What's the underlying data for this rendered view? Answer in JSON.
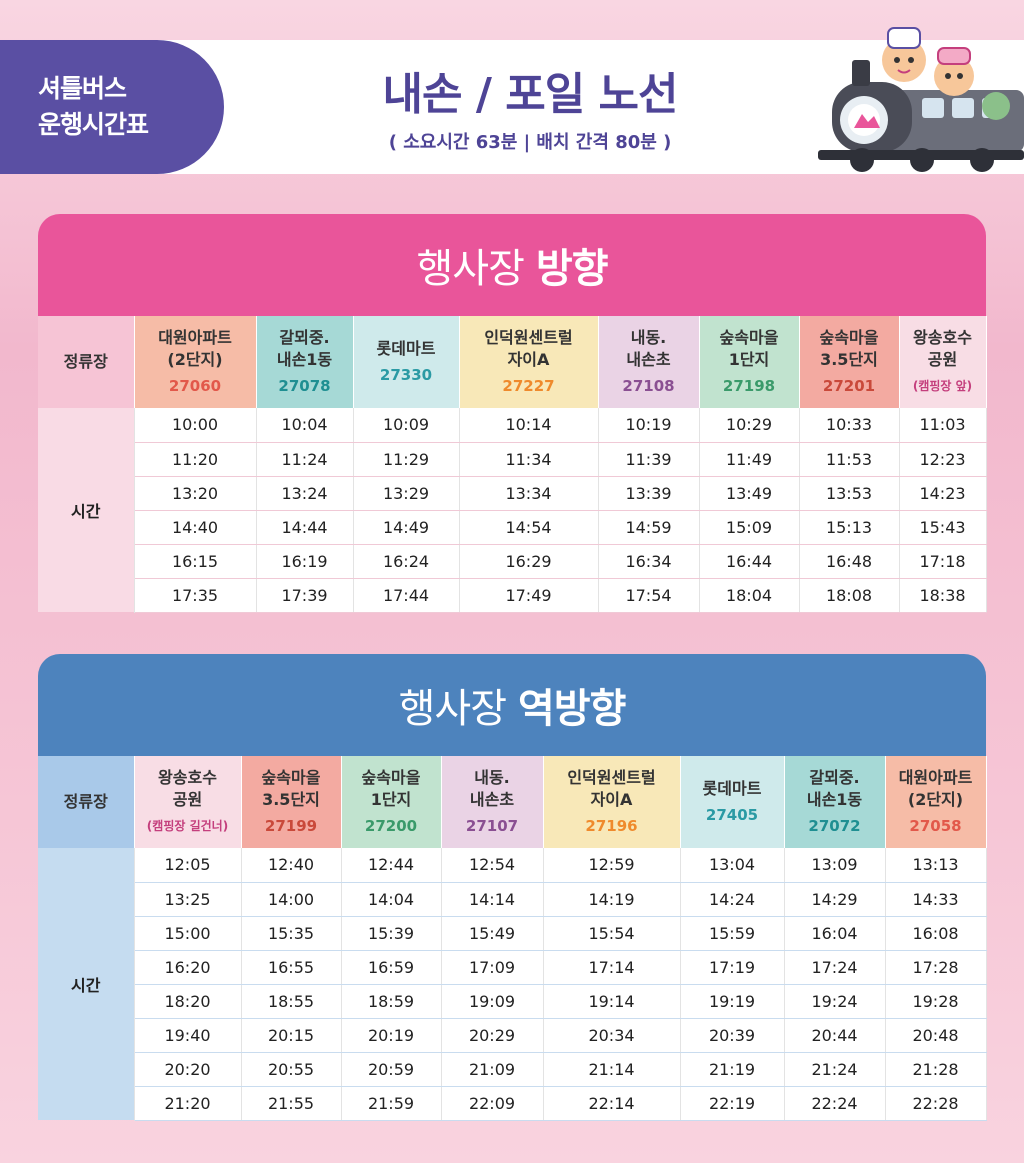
{
  "header": {
    "badge_line1": "셔틀버스",
    "badge_line2": "운행시간표",
    "title": "내손 / 포일 노선",
    "subtitle": "( 소요시간 63분 | 배치 간격 80분 )"
  },
  "colors": {
    "accent_purple": "#4e4496",
    "section1_header": "#e9559a",
    "section2_header": "#4d83bd"
  },
  "sections": [
    {
      "title_light": "행사장",
      "title_bold": "방향",
      "stop_label": "정류장",
      "time_label": "시간",
      "stops": [
        {
          "name1": "대원아파트",
          "name2": "(2단지)",
          "code": "27060",
          "bg": "#f6bca7",
          "code_color": "#e2584a"
        },
        {
          "name1": "갈뫼중.",
          "name2": "내손1동",
          "code": "27078",
          "bg": "#a6d9d6",
          "code_color": "#1f8f92"
        },
        {
          "name1": "롯데마트",
          "name2": "",
          "code": "27330",
          "bg": "#cfeaeb",
          "code_color": "#2a9aa4"
        },
        {
          "name1": "인덕원센트럴",
          "name2": "자이A",
          "code": "27227",
          "bg": "#f8e8b8",
          "code_color": "#ef8a2c"
        },
        {
          "name1": "내동.",
          "name2": "내손초",
          "code": "27108",
          "bg": "#ead3e5",
          "code_color": "#8a4f92"
        },
        {
          "name1": "숲속마을",
          "name2": "1단지",
          "code": "27198",
          "bg": "#c1e3cf",
          "code_color": "#3a9a6a"
        },
        {
          "name1": "숲속마을",
          "name2": "3.5단지",
          "code": "27201",
          "bg": "#f3aaa1",
          "code_color": "#c9493a"
        },
        {
          "name1": "왕송호수",
          "name2": "공원",
          "code": "(캠핑장 앞)",
          "bg": "#f8dde5",
          "code_color": "#c43f7d"
        }
      ],
      "times": [
        [
          "10:00",
          "10:04",
          "10:09",
          "10:14",
          "10:19",
          "10:29",
          "10:33",
          "11:03"
        ],
        [
          "11:20",
          "11:24",
          "11:29",
          "11:34",
          "11:39",
          "11:49",
          "11:53",
          "12:23"
        ],
        [
          "13:20",
          "13:24",
          "13:29",
          "13:34",
          "13:39",
          "13:49",
          "13:53",
          "14:23"
        ],
        [
          "14:40",
          "14:44",
          "14:49",
          "14:54",
          "14:59",
          "15:09",
          "15:13",
          "15:43"
        ],
        [
          "16:15",
          "16:19",
          "16:24",
          "16:29",
          "16:34",
          "16:44",
          "16:48",
          "17:18"
        ],
        [
          "17:35",
          "17:39",
          "17:44",
          "17:49",
          "17:54",
          "18:04",
          "18:08",
          "18:38"
        ]
      ]
    },
    {
      "title_light": "행사장",
      "title_bold": "역방향",
      "stop_label": "정류장",
      "time_label": "시간",
      "stops": [
        {
          "name1": "왕송호수",
          "name2": "공원",
          "code": "(캠핑장 길건너)",
          "bg": "#f8dde5",
          "code_color": "#c43f7d"
        },
        {
          "name1": "숲속마을",
          "name2": "3.5단지",
          "code": "27199",
          "bg": "#f3aaa1",
          "code_color": "#c9493a"
        },
        {
          "name1": "숲속마을",
          "name2": "1단지",
          "code": "27200",
          "bg": "#c1e3cf",
          "code_color": "#3a9a6a"
        },
        {
          "name1": "내동.",
          "name2": "내손초",
          "code": "27107",
          "bg": "#ead3e5",
          "code_color": "#8a4f92"
        },
        {
          "name1": "인덕원센트럴",
          "name2": "자이A",
          "code": "27196",
          "bg": "#f8e8b8",
          "code_color": "#ef8a2c"
        },
        {
          "name1": "롯데마트",
          "name2": "",
          "code": "27405",
          "bg": "#cfeaeb",
          "code_color": "#2a9aa4"
        },
        {
          "name1": "갈뫼중.",
          "name2": "내손1동",
          "code": "27072",
          "bg": "#a6d9d6",
          "code_color": "#1f8f92"
        },
        {
          "name1": "대원아파트",
          "name2": "(2단지)",
          "code": "27058",
          "bg": "#f6bca7",
          "code_color": "#e2584a"
        }
      ],
      "times": [
        [
          "12:05",
          "12:40",
          "12:44",
          "12:54",
          "12:59",
          "13:04",
          "13:09",
          "13:13"
        ],
        [
          "13:25",
          "14:00",
          "14:04",
          "14:14",
          "14:19",
          "14:24",
          "14:29",
          "14:33"
        ],
        [
          "15:00",
          "15:35",
          "15:39",
          "15:49",
          "15:54",
          "15:59",
          "16:04",
          "16:08"
        ],
        [
          "16:20",
          "16:55",
          "16:59",
          "17:09",
          "17:14",
          "17:19",
          "17:24",
          "17:28"
        ],
        [
          "18:20",
          "18:55",
          "18:59",
          "19:09",
          "19:14",
          "19:19",
          "19:24",
          "19:28"
        ],
        [
          "19:40",
          "20:15",
          "20:19",
          "20:29",
          "20:34",
          "20:39",
          "20:44",
          "20:48"
        ],
        [
          "20:20",
          "20:55",
          "20:59",
          "21:09",
          "21:14",
          "21:19",
          "21:24",
          "21:28"
        ],
        [
          "21:20",
          "21:55",
          "21:59",
          "22:09",
          "22:14",
          "22:19",
          "22:24",
          "22:28"
        ]
      ]
    }
  ]
}
